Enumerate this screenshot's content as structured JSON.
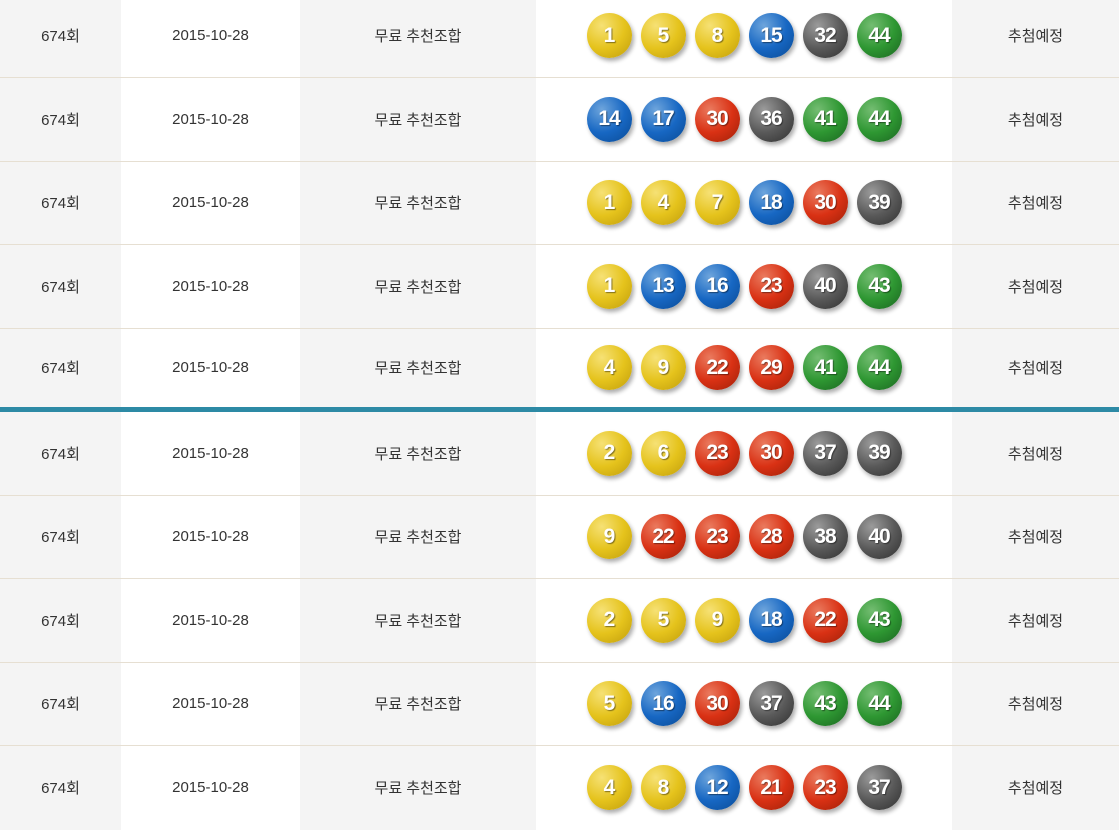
{
  "table": {
    "divider_after_row": 5,
    "rows": [
      {
        "round": "674회",
        "date": "2015-10-28",
        "type": "무료 추천조합",
        "numbers": [
          1,
          5,
          8,
          15,
          32,
          44
        ],
        "status": "추첨예정"
      },
      {
        "round": "674회",
        "date": "2015-10-28",
        "type": "무료 추천조합",
        "numbers": [
          14,
          17,
          30,
          36,
          41,
          44
        ],
        "status": "추첨예정"
      },
      {
        "round": "674회",
        "date": "2015-10-28",
        "type": "무료 추천조합",
        "numbers": [
          1,
          4,
          7,
          18,
          30,
          39
        ],
        "status": "추첨예정"
      },
      {
        "round": "674회",
        "date": "2015-10-28",
        "type": "무료 추천조합",
        "numbers": [
          1,
          13,
          16,
          23,
          40,
          43
        ],
        "status": "추첨예정"
      },
      {
        "round": "674회",
        "date": "2015-10-28",
        "type": "무료 추천조합",
        "numbers": [
          4,
          9,
          22,
          29,
          41,
          44
        ],
        "status": "추첨예정"
      },
      {
        "round": "674회",
        "date": "2015-10-28",
        "type": "무료 추천조합",
        "numbers": [
          2,
          6,
          23,
          30,
          37,
          39
        ],
        "status": "추첨예정"
      },
      {
        "round": "674회",
        "date": "2015-10-28",
        "type": "무료 추천조합",
        "numbers": [
          9,
          22,
          23,
          28,
          38,
          40
        ],
        "status": "추첨예정"
      },
      {
        "round": "674회",
        "date": "2015-10-28",
        "type": "무료 추천조합",
        "numbers": [
          2,
          5,
          9,
          18,
          22,
          43
        ],
        "status": "추첨예정"
      },
      {
        "round": "674회",
        "date": "2015-10-28",
        "type": "무료 추천조합",
        "numbers": [
          5,
          16,
          30,
          37,
          43,
          44
        ],
        "status": "추첨예정"
      },
      {
        "round": "674회",
        "date": "2015-10-28",
        "type": "무료 추천조합",
        "numbers": [
          4,
          8,
          12,
          21,
          23,
          37
        ],
        "status": "추첨예정"
      }
    ]
  },
  "ball_ranges": [
    {
      "max": 10,
      "color": "yellow"
    },
    {
      "max": 20,
      "color": "blue"
    },
    {
      "max": 30,
      "color": "red"
    },
    {
      "max": 40,
      "color": "gray"
    },
    {
      "max": 45,
      "color": "green"
    }
  ],
  "ball_colors": {
    "yellow": {
      "light": "#f6e175",
      "base": "#e5c31c",
      "dark": "#bf9c0c"
    },
    "blue": {
      "light": "#6ea5dc",
      "base": "#1767c3",
      "dark": "#0a4a94"
    },
    "red": {
      "light": "#ea7a5e",
      "base": "#d93114",
      "dark": "#9e2008"
    },
    "gray": {
      "light": "#9b9b9b",
      "base": "#595959",
      "dark": "#2f2f2f"
    },
    "green": {
      "light": "#74bd72",
      "base": "#2e9732",
      "dark": "#1a6420"
    }
  },
  "colors": {
    "divider": "#2d8aa5",
    "row_border": "#e6dfd2",
    "alt_bg": "#f4f4f4",
    "text": "#333333"
  }
}
